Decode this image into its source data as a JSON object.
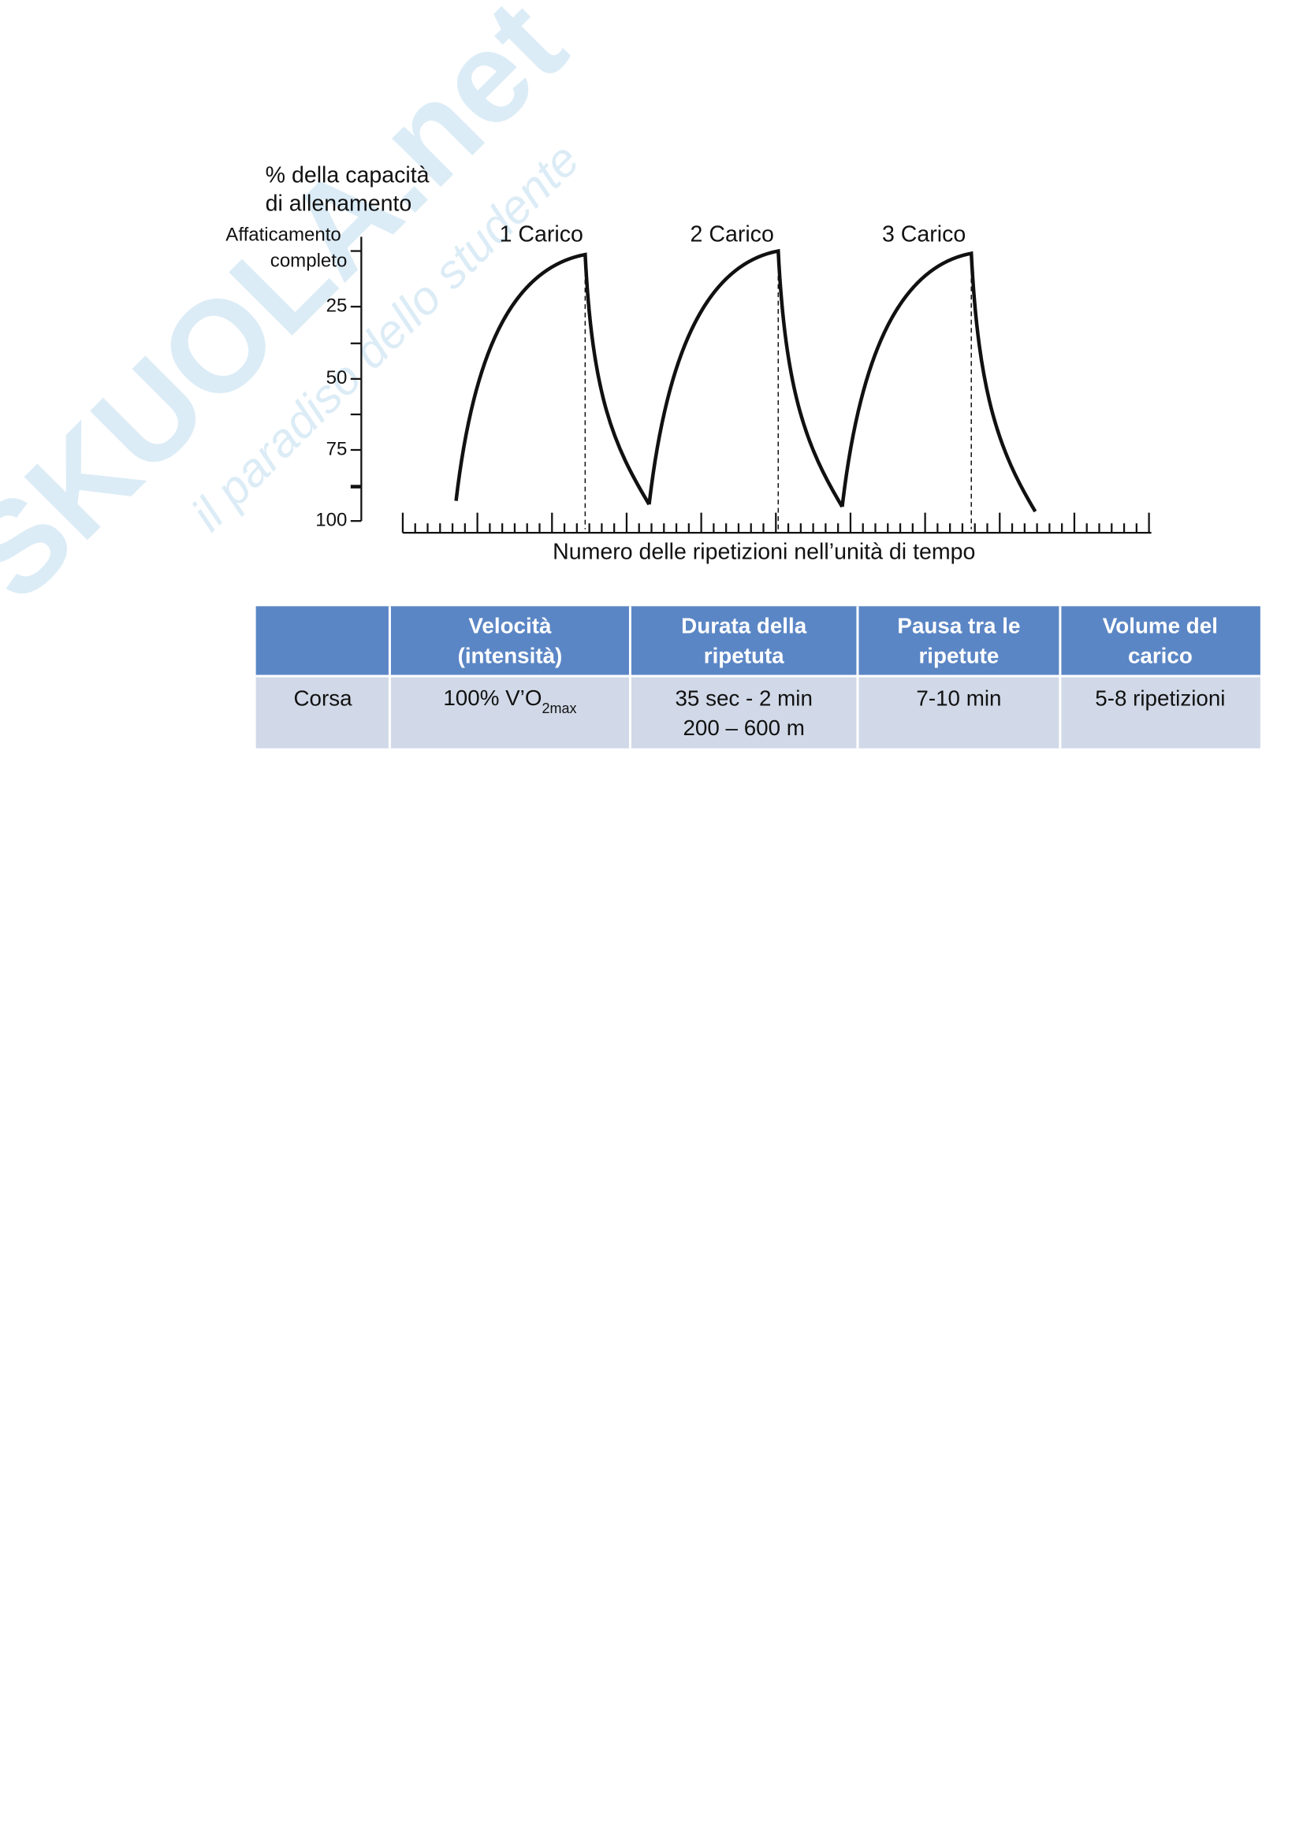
{
  "figure": {
    "y_title": [
      "% della capacità",
      "di allenamento"
    ],
    "y_top_label": [
      "Affaticamento",
      "completo"
    ],
    "y_labels": [
      "25",
      "50",
      "75",
      "100"
    ],
    "load_labels": [
      "1 Carico",
      "2 Carico",
      "3 Carico"
    ],
    "x_title": "Numero delle ripetizioni nell’unità di tempo"
  },
  "watermark": {
    "brand": "SKUOLA.net",
    "tagline": "il paradiso dello studente"
  },
  "table": {
    "header": [
      [
        "Velocità",
        "(intensità)"
      ],
      [
        "Durata della",
        "ripetuta"
      ],
      [
        "Pausa tra le",
        "ripetute"
      ],
      [
        "Volume del",
        "carico"
      ]
    ],
    "row": {
      "label": "Corsa",
      "velocity": {
        "text": "100% V’O",
        "sub": "2max"
      },
      "duration": [
        "35 sec - 2 min",
        "200 – 600 m"
      ],
      "pause": "7-10 min",
      "volume": "5-8 ripetizioni"
    }
  }
}
